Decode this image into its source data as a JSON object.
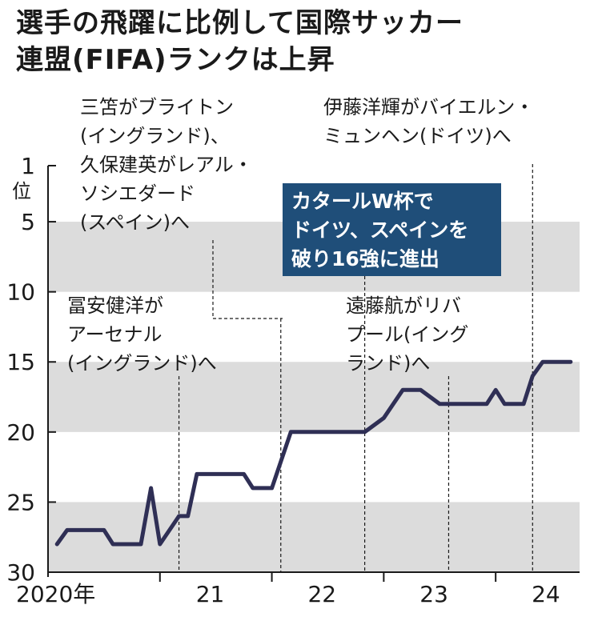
{
  "title_line1": "選手の飛躍に比例して国際サッカー",
  "title_line2": "連盟(FIFA)ランクは上昇",
  "colors": {
    "band": "#dcdcdc",
    "line": "#2f2f55",
    "box": "#1f4e79",
    "text": "#1a1a1a"
  },
  "annotations": {
    "mitoma_kubo": [
      "三笘がブライトン",
      "(イングランド)、",
      "久保建英がレアル・",
      "ソシエダード",
      "(スペイン)へ"
    ],
    "ito": [
      "伊藤洋輝がバイエルン・",
      "ミュンヘン(ドイツ)へ"
    ],
    "tomiyasu": [
      "冨安健洋が",
      "アーセナル",
      "(イングランド)へ"
    ],
    "endo": [
      "遠藤航がリバ",
      "プール(イング",
      "ランド)へ"
    ],
    "worldcup": [
      "カタールW杯で",
      "ドイツ、スペインを",
      "破り16強に進出"
    ]
  },
  "chart_data": {
    "type": "line",
    "title": "選手の飛躍に比例して国際サッカー連盟(FIFA)ランクは上昇",
    "ylabel": "位",
    "ylim": [
      1,
      30
    ],
    "y_inverted": true,
    "yticks": [
      "1",
      "5",
      "10",
      "15",
      "20",
      "25",
      "30"
    ],
    "xlim": [
      2020.0,
      2024.75
    ],
    "xtick_labels": [
      "2020年",
      "21",
      "22",
      "23",
      "24"
    ],
    "shaded_bands": [
      [
        5,
        10
      ],
      [
        15,
        20
      ],
      [
        25,
        30
      ]
    ],
    "series": [
      {
        "x": [
          2020.08,
          2020.17,
          2020.42,
          2020.5,
          2020.58,
          2020.75,
          2020.83,
          2020.92,
          2021.0,
          2021.17,
          2021.25,
          2021.33,
          2021.42,
          2021.5,
          2021.67,
          2021.75,
          2021.83,
          2022.0,
          2022.17,
          2022.25,
          2022.42,
          2022.5,
          2022.58,
          2022.67,
          2022.83,
          2023.0,
          2023.17,
          2023.33,
          2023.5,
          2023.58,
          2023.67,
          2023.75,
          2023.92,
          2024.0,
          2024.08,
          2024.17,
          2024.25,
          2024.33,
          2024.42,
          2024.5,
          2024.58,
          2024.67
        ],
        "values": [
          28,
          27,
          27,
          27,
          28,
          28,
          28,
          24,
          28,
          26,
          26,
          23,
          23,
          23,
          23,
          23,
          24,
          24,
          20,
          20,
          20,
          20,
          20,
          20,
          20,
          19,
          17,
          17,
          18,
          18,
          18,
          18,
          18,
          17,
          18,
          18,
          18,
          16,
          15,
          15,
          15,
          15
        ]
      }
    ],
    "event_markers": [
      {
        "x": 2021.17,
        "label": "冨安健洋がアーセナル(イングランド)へ"
      },
      {
        "x": 2022.08,
        "label": "三笘がブライトン(イングランド)、久保建英がレアル・ソシエダード(スペイン)へ"
      },
      {
        "x": 2022.83,
        "label": "カタールW杯でドイツ、スペインを破り16強に進出"
      },
      {
        "x": 2023.58,
        "label": "遠藤航がリバプール(イングランド)へ"
      },
      {
        "x": 2024.33,
        "label": "伊藤洋輝がバイエルン・ミュンヘン(ドイツ)へ"
      }
    ]
  }
}
